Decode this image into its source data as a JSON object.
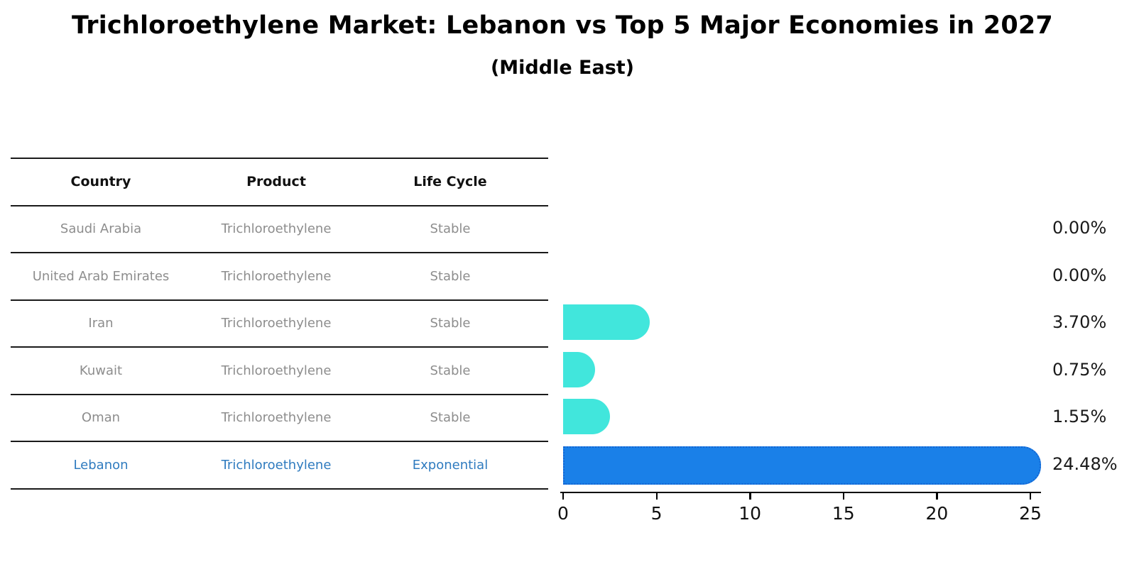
{
  "title": "Trichloroethylene Market: Lebanon vs Top 5 Major Economies in 2027",
  "subtitle": "(Middle East)",
  "table": {
    "headers": [
      "Country",
      "Product",
      "Life Cycle"
    ],
    "rows": [
      {
        "country": "Saudi Arabia",
        "product": "Trichloroethylene",
        "life_cycle": "Stable",
        "highlight": false
      },
      {
        "country": "United Arab Emirates",
        "product": "Trichloroethylene",
        "life_cycle": "Stable",
        "highlight": false
      },
      {
        "country": "Iran",
        "product": "Trichloroethylene",
        "life_cycle": "Stable",
        "highlight": false
      },
      {
        "country": "Kuwait",
        "product": "Trichloroethylene",
        "life_cycle": "Stable",
        "highlight": false
      },
      {
        "country": "Oman",
        "product": "Trichloroethylene",
        "life_cycle": "Stable",
        "highlight": false
      },
      {
        "country": "Lebanon",
        "product": "Trichloroethylene",
        "life_cycle": "Exponential",
        "highlight": true
      }
    ]
  },
  "chart_data": {
    "type": "bar",
    "orientation": "horizontal",
    "title": "Trichloroethylene Market: Lebanon vs Top 5 Major Economies in 2027",
    "subtitle": "(Middle East)",
    "categories": [
      "Saudi Arabia",
      "United Arab Emirates",
      "Iran",
      "Kuwait",
      "Oman",
      "Lebanon"
    ],
    "values": [
      0.0,
      0.0,
      3.7,
      0.75,
      1.55,
      24.48
    ],
    "value_labels": [
      "0.00%",
      "0.00%",
      "3.70%",
      "0.75%",
      "1.55%",
      "24.48%"
    ],
    "xlabel": "",
    "ylabel": "",
    "xlim": [
      0,
      25
    ],
    "x_ticks": [
      0,
      5,
      10,
      15,
      20,
      25
    ],
    "x_tick_labels": [
      "0",
      "5",
      "10",
      "15",
      "20",
      "25"
    ],
    "grid": false,
    "legend": false,
    "highlight_index": 5,
    "unit": "percent"
  },
  "colors": {
    "bar_cyan": "#41E6DC",
    "bar_blue": "#1A80E8",
    "bar_blue_border": "#1565D2",
    "highlight_text": "#2F7BBF",
    "table_text": "#8D8D8D"
  }
}
